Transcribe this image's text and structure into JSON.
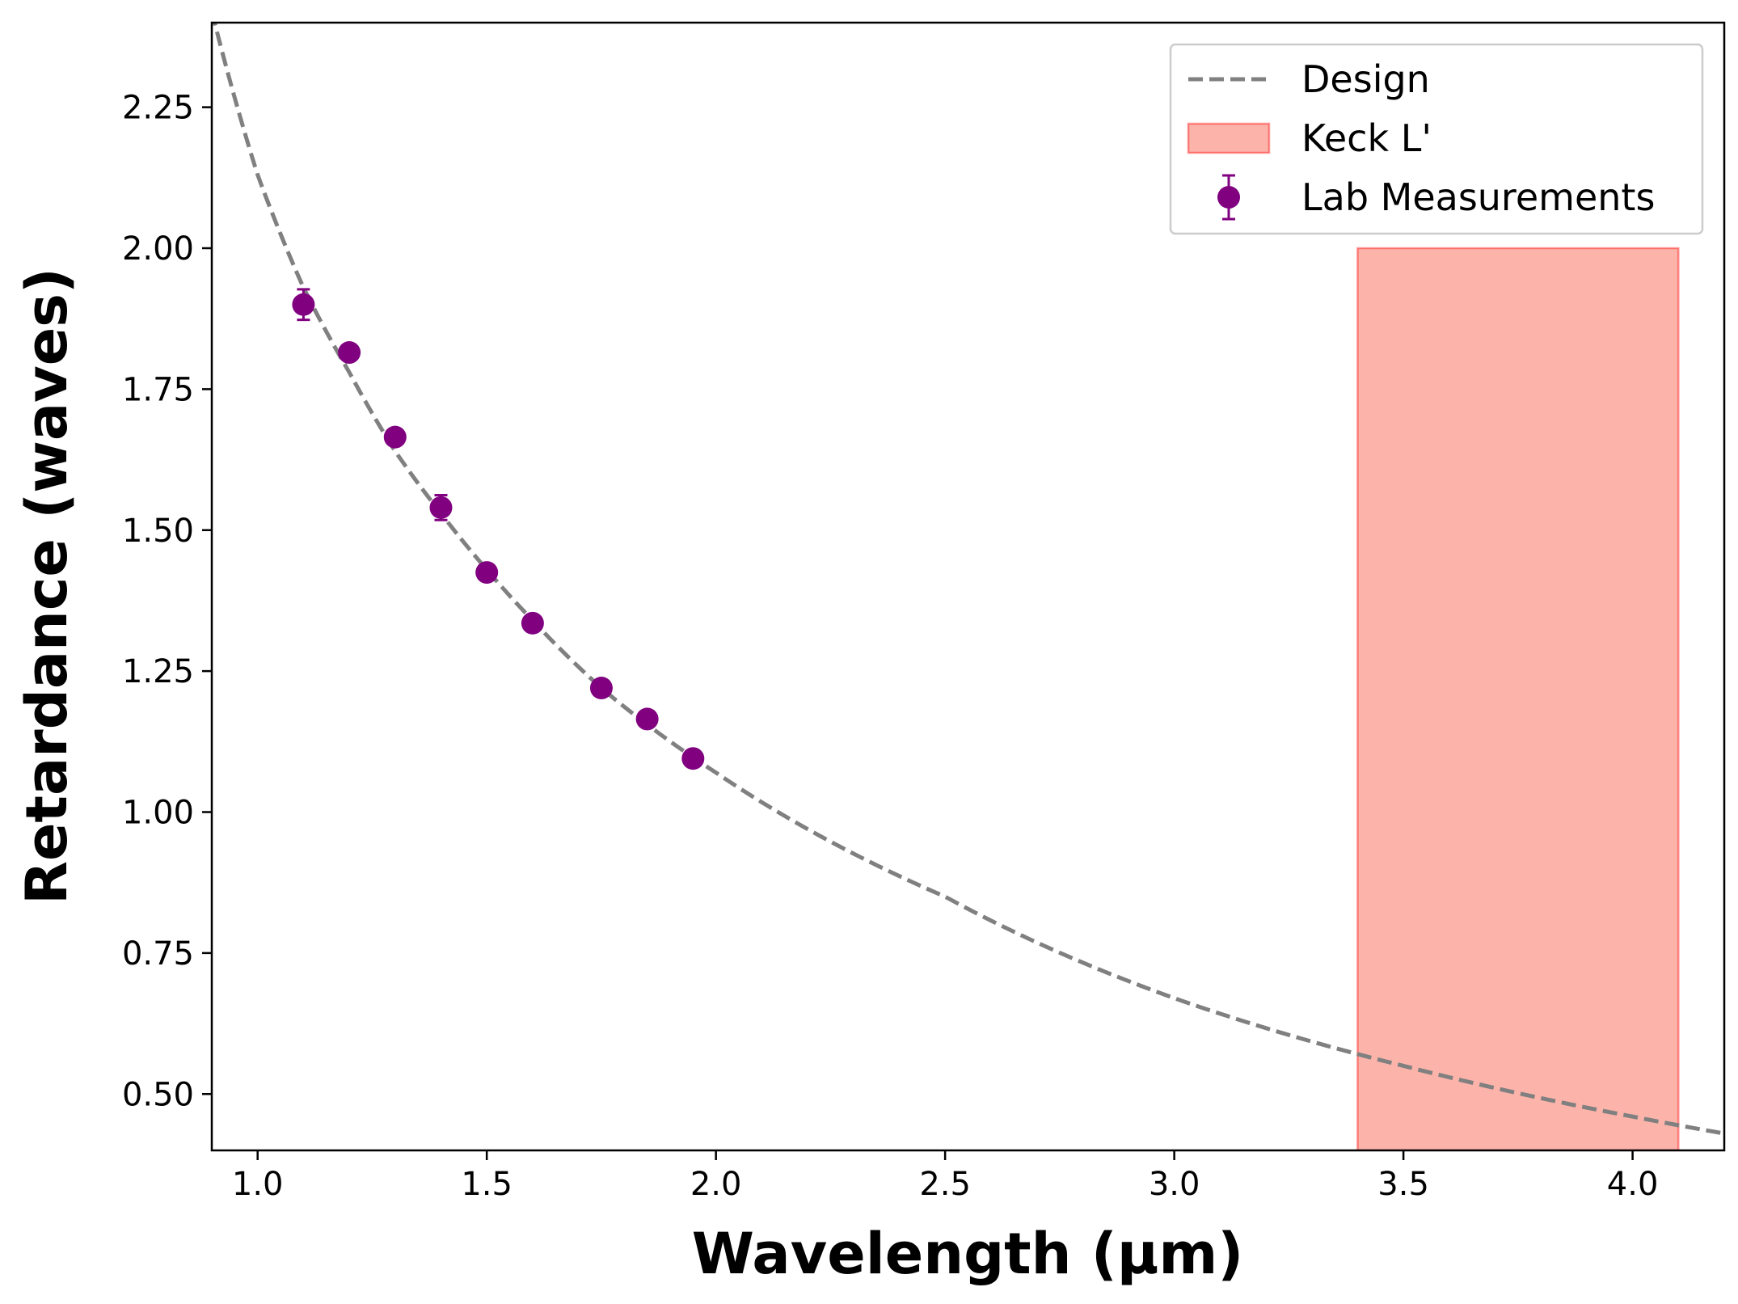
{
  "chart_data": {
    "type": "scatter",
    "xlabel": "Wavelength (µm)",
    "ylabel": "Retardance (waves)",
    "xlim": [
      0.9,
      4.2
    ],
    "ylim": [
      0.4,
      2.4
    ],
    "xticks": [
      1.0,
      1.5,
      2.0,
      2.5,
      3.0,
      3.5,
      4.0
    ],
    "xtick_labels": [
      "1.0",
      "1.5",
      "2.0",
      "2.5",
      "3.0",
      "3.5",
      "4.0"
    ],
    "yticks": [
      0.5,
      0.75,
      1.0,
      1.25,
      1.5,
      1.75,
      2.0,
      2.25
    ],
    "ytick_labels": [
      "0.50",
      "0.75",
      "1.00",
      "1.25",
      "1.50",
      "1.75",
      "2.00",
      "2.25"
    ],
    "grid": false,
    "legend_position": "top-right",
    "series": [
      {
        "name": "Design",
        "kind": "line",
        "style": "dashed",
        "color": "#808080",
        "x": [
          0.9,
          1.0,
          1.1,
          1.2,
          1.3,
          1.4,
          1.5,
          1.6,
          1.75,
          2.0,
          2.5,
          3.0,
          3.5,
          4.0,
          4.2
        ],
        "y": [
          2.42,
          2.13,
          1.93,
          1.78,
          1.64,
          1.53,
          1.43,
          1.34,
          1.22,
          1.07,
          0.85,
          0.67,
          0.55,
          0.46,
          0.43
        ]
      },
      {
        "name": "Keck L'",
        "kind": "band",
        "color": "#fa8072",
        "x_range": [
          3.4,
          4.1
        ],
        "y_range": [
          0.4,
          2.0
        ]
      },
      {
        "name": "Lab Measurements",
        "kind": "errorbar",
        "color": "#800080",
        "x": [
          1.1,
          1.2,
          1.3,
          1.4,
          1.5,
          1.6,
          1.75,
          1.85,
          1.95
        ],
        "y": [
          1.9,
          1.815,
          1.665,
          1.54,
          1.425,
          1.335,
          1.22,
          1.165,
          1.095
        ],
        "yerr": [
          0.027,
          0.01,
          0.01,
          0.022,
          0.01,
          0.01,
          0.01,
          0.01,
          0.012
        ]
      }
    ]
  }
}
